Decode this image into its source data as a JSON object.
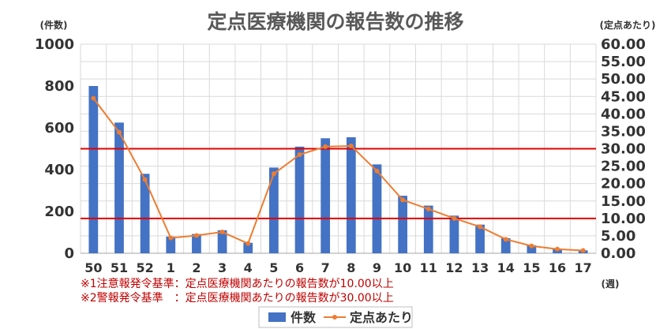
{
  "chart_data": {
    "type": "bar",
    "title": "定点医療機関の報告数の推移",
    "y_unit_label": "(件数)",
    "y2_unit_label": "(定点あたり)",
    "x_unit_label": "(週)",
    "categories": [
      "50",
      "51",
      "52",
      "1",
      "2",
      "3",
      "4",
      "5",
      "6",
      "7",
      "8",
      "9",
      "10",
      "11",
      "12",
      "13",
      "14",
      "15",
      "16",
      "17"
    ],
    "ylim": [
      0,
      1000
    ],
    "yticks": [
      "0",
      "200",
      "400",
      "600",
      "800",
      "1000"
    ],
    "y2lim": [
      0,
      60
    ],
    "y2ticks": [
      "0.00",
      "5.00",
      "10.00",
      "15.00",
      "20.00",
      "25.00",
      "30.00",
      "35.00",
      "40.00",
      "45.00",
      "50.00",
      "55.00",
      "60.00"
    ],
    "series": [
      {
        "name": "件数",
        "type": "bar",
        "axis": "left",
        "color": "#4472c4",
        "values": [
          800,
          625,
          380,
          80,
          92,
          110,
          50,
          410,
          510,
          550,
          555,
          425,
          275,
          228,
          180,
          137,
          72,
          38,
          22,
          14
        ]
      },
      {
        "name": "定点あたり",
        "type": "line",
        "axis": "right",
        "color": "#ed7d31",
        "values": [
          44.5,
          34.7,
          21.1,
          4.4,
          5.1,
          6.1,
          2.8,
          22.8,
          28.3,
          30.6,
          30.8,
          23.6,
          15.3,
          12.7,
          10.0,
          7.6,
          4.0,
          2.1,
          1.2,
          0.8
        ]
      }
    ],
    "thresholds": [
      {
        "value": 10,
        "axis": "right",
        "color": "#e00000"
      },
      {
        "value": 30,
        "axis": "right",
        "color": "#e00000"
      }
    ],
    "notes": [
      "※1注意報発令基準：定点医療機関あたりの報告数が10.00以上",
      "※2警報発令基準　：定点医療機関あたりの報告数が30.00以上"
    ],
    "grid": true,
    "legend_position": "bottom"
  }
}
